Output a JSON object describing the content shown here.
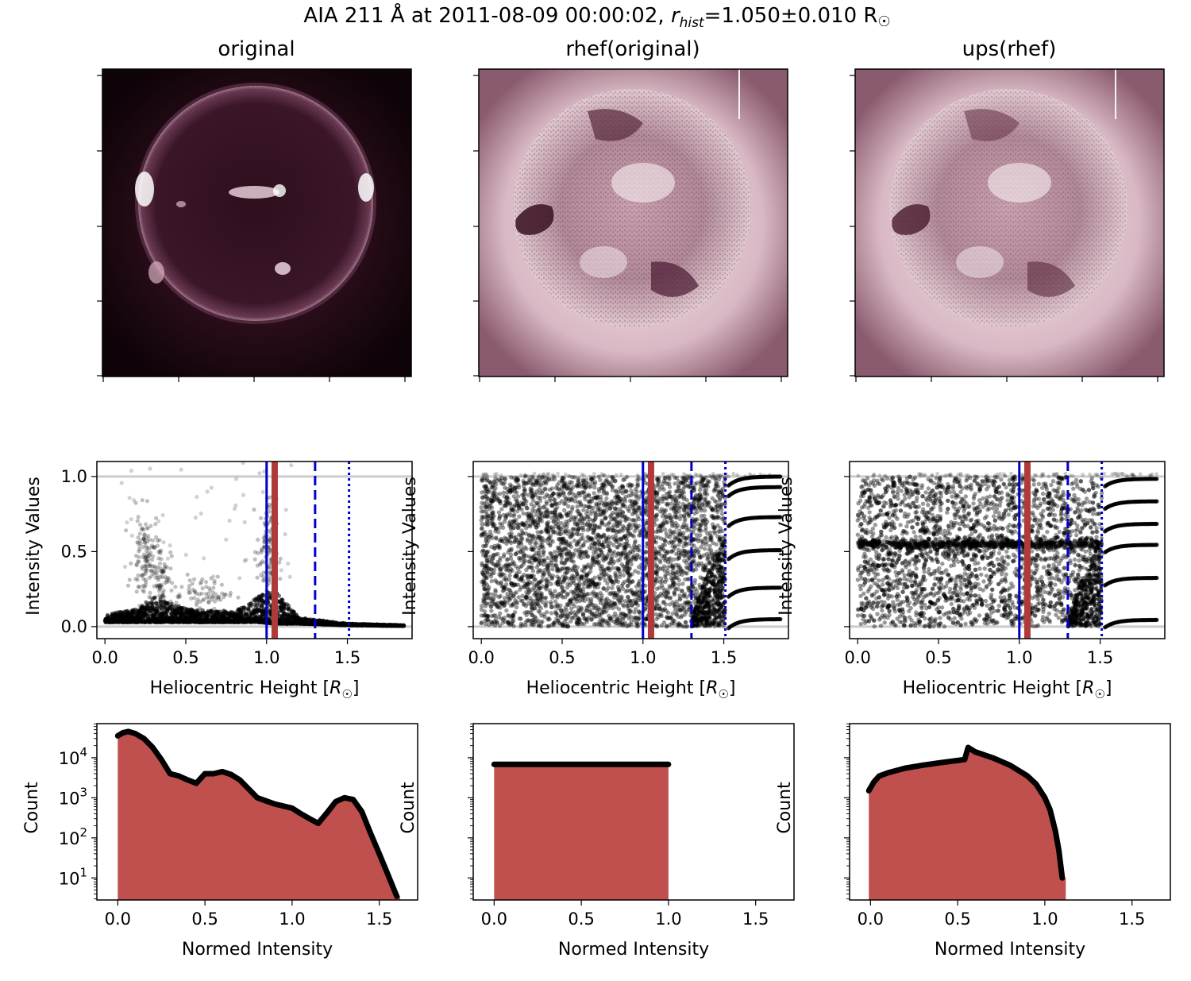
{
  "figure": {
    "title_prefix": "AIA 211 Å at 2011-08-09 00:00:02, ",
    "title_r": "r",
    "title_sub": "hist",
    "title_suffix": "=1.050±0.010 R",
    "title_sun": "☉"
  },
  "colors": {
    "sun_dark": "#1a0710",
    "sun_mid": "#5c2a3e",
    "sun_light": "#f4e7ea",
    "hist_fill": "#c0504d",
    "rhist_line": "#b03a3a",
    "limb_line": "#0000cc",
    "grid_line": "#cccccc"
  },
  "panels": [
    {
      "id": "original",
      "title": "original"
    },
    {
      "id": "rhef",
      "title": "rhef(original)"
    },
    {
      "id": "ups",
      "title": "ups(rhef)"
    }
  ],
  "chart_data": [
    {
      "type": "scatter",
      "panel": "original",
      "xlabel_prefix": "Heliocentric Height [",
      "xlabel_sym": "R",
      "xlabel_sub": "☉",
      "xlabel_suffix": "]",
      "ylabel": "Intensity Values",
      "xlim": [
        -0.05,
        1.9
      ],
      "ylim": [
        -0.08,
        1.1
      ],
      "xticks": [
        0.0,
        0.5,
        1.0,
        1.5
      ],
      "xticklabels": [
        "0.0",
        "0.5",
        "1.0",
        "1.5"
      ],
      "yticks": [
        0.0,
        0.5,
        1.0
      ],
      "yticklabels": [
        "0.0",
        "0.5",
        "1.0"
      ],
      "hlines": [
        0.0,
        1.0
      ],
      "vlines": [
        {
          "x": 1.0,
          "style": "solid",
          "color": "blue"
        },
        {
          "x": 1.05,
          "style": "thick",
          "color": "red"
        },
        {
          "x": 1.3,
          "style": "dashed",
          "color": "blue"
        },
        {
          "x": 1.51,
          "style": "dotted",
          "color": "blue"
        }
      ],
      "band_profile": [
        {
          "x": 0.0,
          "low": 0.03,
          "high": 0.08
        },
        {
          "x": 0.2,
          "low": 0.03,
          "high": 0.12
        },
        {
          "x": 0.3,
          "low": 0.03,
          "high": 0.2
        },
        {
          "x": 0.5,
          "low": 0.03,
          "high": 0.12
        },
        {
          "x": 0.8,
          "low": 0.03,
          "high": 0.1
        },
        {
          "x": 0.95,
          "low": 0.03,
          "high": 0.2
        },
        {
          "x": 1.05,
          "low": 0.02,
          "high": 0.25
        },
        {
          "x": 1.2,
          "low": 0.02,
          "high": 0.06
        },
        {
          "x": 1.5,
          "low": 0.01,
          "high": 0.02
        },
        {
          "x": 1.85,
          "low": 0.005,
          "high": 0.01
        }
      ],
      "outlier_clusters": [
        {
          "x": 0.25,
          "y": 0.45,
          "spread_x": 0.08,
          "spread_y": 0.3,
          "n": 120
        },
        {
          "x": 0.35,
          "y": 0.35,
          "spread_x": 0.06,
          "spread_y": 0.2,
          "n": 60
        },
        {
          "x": 1.0,
          "y": 0.5,
          "spread_x": 0.06,
          "spread_y": 0.35,
          "n": 110
        },
        {
          "x": 0.6,
          "y": 0.22,
          "spread_x": 0.2,
          "spread_y": 0.12,
          "n": 80
        }
      ]
    },
    {
      "type": "scatter",
      "panel": "rhef",
      "xlabel_prefix": "Heliocentric Height [",
      "xlabel_sym": "R",
      "xlabel_sub": "☉",
      "xlabel_suffix": "]",
      "ylabel": "Intensity Values",
      "xlim": [
        -0.05,
        1.9
      ],
      "ylim": [
        -0.08,
        1.1
      ],
      "xticks": [
        0.0,
        0.5,
        1.0,
        1.5
      ],
      "xticklabels": [
        "0.0",
        "0.5",
        "1.0",
        "1.5"
      ],
      "yticks": [
        0.0,
        0.5,
        1.0
      ],
      "yticklabels": [],
      "hlines": [
        0.0,
        1.0
      ],
      "vlines": [
        {
          "x": 1.0,
          "style": "solid",
          "color": "blue"
        },
        {
          "x": 1.05,
          "style": "thick",
          "color": "red"
        },
        {
          "x": 1.3,
          "style": "dashed",
          "color": "blue"
        },
        {
          "x": 1.51,
          "style": "dotted",
          "color": "blue"
        }
      ],
      "uniform_range": [
        0.0,
        1.0
      ],
      "uniform_xmax": 1.51,
      "step_levels": [
        0.02,
        0.23,
        0.48,
        0.7,
        0.9,
        0.97
      ],
      "step_rise": 0.06,
      "step_xmin": 1.53,
      "step_xmax": 1.85
    },
    {
      "type": "scatter",
      "panel": "ups",
      "xlabel_prefix": "Heliocentric Height [",
      "xlabel_sym": "R",
      "xlabel_sub": "☉",
      "xlabel_suffix": "]",
      "ylabel": "Intensity Values",
      "xlim": [
        -0.05,
        1.9
      ],
      "ylim": [
        -0.08,
        1.1
      ],
      "xticks": [
        0.0,
        0.5,
        1.0,
        1.5
      ],
      "xticklabels": [
        "0.0",
        "0.5",
        "1.0",
        "1.5"
      ],
      "yticks": [
        0.0,
        0.5,
        1.0
      ],
      "yticklabels": [],
      "hlines": [
        0.0,
        1.0
      ],
      "vlines": [
        {
          "x": 1.0,
          "style": "solid",
          "color": "blue"
        },
        {
          "x": 1.05,
          "style": "thick",
          "color": "red"
        },
        {
          "x": 1.3,
          "style": "dashed",
          "color": "blue"
        },
        {
          "x": 1.51,
          "style": "dotted",
          "color": "blue"
        }
      ],
      "uniform_range": [
        0.0,
        1.0
      ],
      "uniform_xmax": 1.51,
      "dense_band": 0.55,
      "step_levels": [
        0.02,
        0.3,
        0.52,
        0.66,
        0.81,
        0.96
      ],
      "step_rise": 0.05,
      "step_xmin": 1.53,
      "step_xmax": 1.85
    },
    {
      "type": "area",
      "panel": "original",
      "xlabel": "Normed Intensity",
      "ylabel": "Count",
      "yscale": "log",
      "xlim": [
        -0.12,
        1.72
      ],
      "ylim_log10": [
        0.45,
        4.85
      ],
      "xticks": [
        0.0,
        0.5,
        1.0,
        1.5
      ],
      "xticklabels": [
        "0.0",
        "0.5",
        "1.0",
        "1.5"
      ],
      "yticks_log10": [
        1,
        2,
        3,
        4
      ],
      "yticklabels_base": [
        "10",
        "10",
        "10",
        "10"
      ],
      "yticklabels_exp": [
        "1",
        "2",
        "3",
        "4"
      ],
      "x": [
        0.0,
        0.03,
        0.06,
        0.1,
        0.15,
        0.2,
        0.25,
        0.3,
        0.35,
        0.4,
        0.45,
        0.5,
        0.55,
        0.6,
        0.65,
        0.7,
        0.8,
        0.9,
        1.0,
        1.05,
        1.1,
        1.15,
        1.2,
        1.25,
        1.3,
        1.35,
        1.4,
        1.45,
        1.5,
        1.55,
        1.6
      ],
      "values": [
        35000,
        42000,
        45000,
        40000,
        30000,
        18000,
        9000,
        4000,
        3500,
        2800,
        2300,
        4000,
        4000,
        4500,
        3800,
        2800,
        1000,
        700,
        550,
        400,
        300,
        230,
        420,
        800,
        1000,
        900,
        450,
        130,
        40,
        12,
        3.5
      ]
    },
    {
      "type": "area",
      "panel": "rhef",
      "xlabel": "Normed Intensity",
      "ylabel": "Count",
      "yscale": "log",
      "xlim": [
        -0.12,
        1.72
      ],
      "ylim_log10": [
        0.45,
        4.85
      ],
      "xticks": [
        0.0,
        0.5,
        1.0,
        1.5
      ],
      "xticklabels": [
        "0.0",
        "0.5",
        "1.0",
        "1.5"
      ],
      "yticks_log10": [
        1,
        2,
        3,
        4
      ],
      "yticklabels_base": [],
      "yticklabels_exp": [],
      "x": [
        0.0,
        0.1,
        0.2,
        0.3,
        0.4,
        0.5,
        0.6,
        0.7,
        0.8,
        0.9,
        1.0
      ],
      "values": [
        6800,
        6800,
        6800,
        6800,
        6800,
        6800,
        6800,
        6800,
        6800,
        6800,
        6800
      ]
    },
    {
      "type": "area",
      "panel": "ups",
      "xlabel": "Normed Intensity",
      "ylabel": "Count",
      "yscale": "log",
      "xlim": [
        -0.12,
        1.72
      ],
      "ylim_log10": [
        0.45,
        4.85
      ],
      "xticks": [
        0.0,
        0.5,
        1.0,
        1.5
      ],
      "xticklabels": [
        "0.0",
        "0.5",
        "1.0",
        "1.5"
      ],
      "yticks_log10": [
        1,
        2,
        3,
        4
      ],
      "yticklabels_base": [],
      "yticklabels_exp": [],
      "x": [
        -0.01,
        0.02,
        0.05,
        0.1,
        0.2,
        0.3,
        0.4,
        0.5,
        0.54,
        0.56,
        0.6,
        0.7,
        0.8,
        0.9,
        0.95,
        1.0,
        1.03,
        1.06,
        1.08,
        1.1
      ],
      "values": [
        1500,
        2500,
        3500,
        4200,
        5500,
        6500,
        7500,
        8500,
        9000,
        18000,
        14000,
        10000,
        6500,
        3500,
        2200,
        1000,
        500,
        150,
        50,
        10
      ]
    }
  ]
}
